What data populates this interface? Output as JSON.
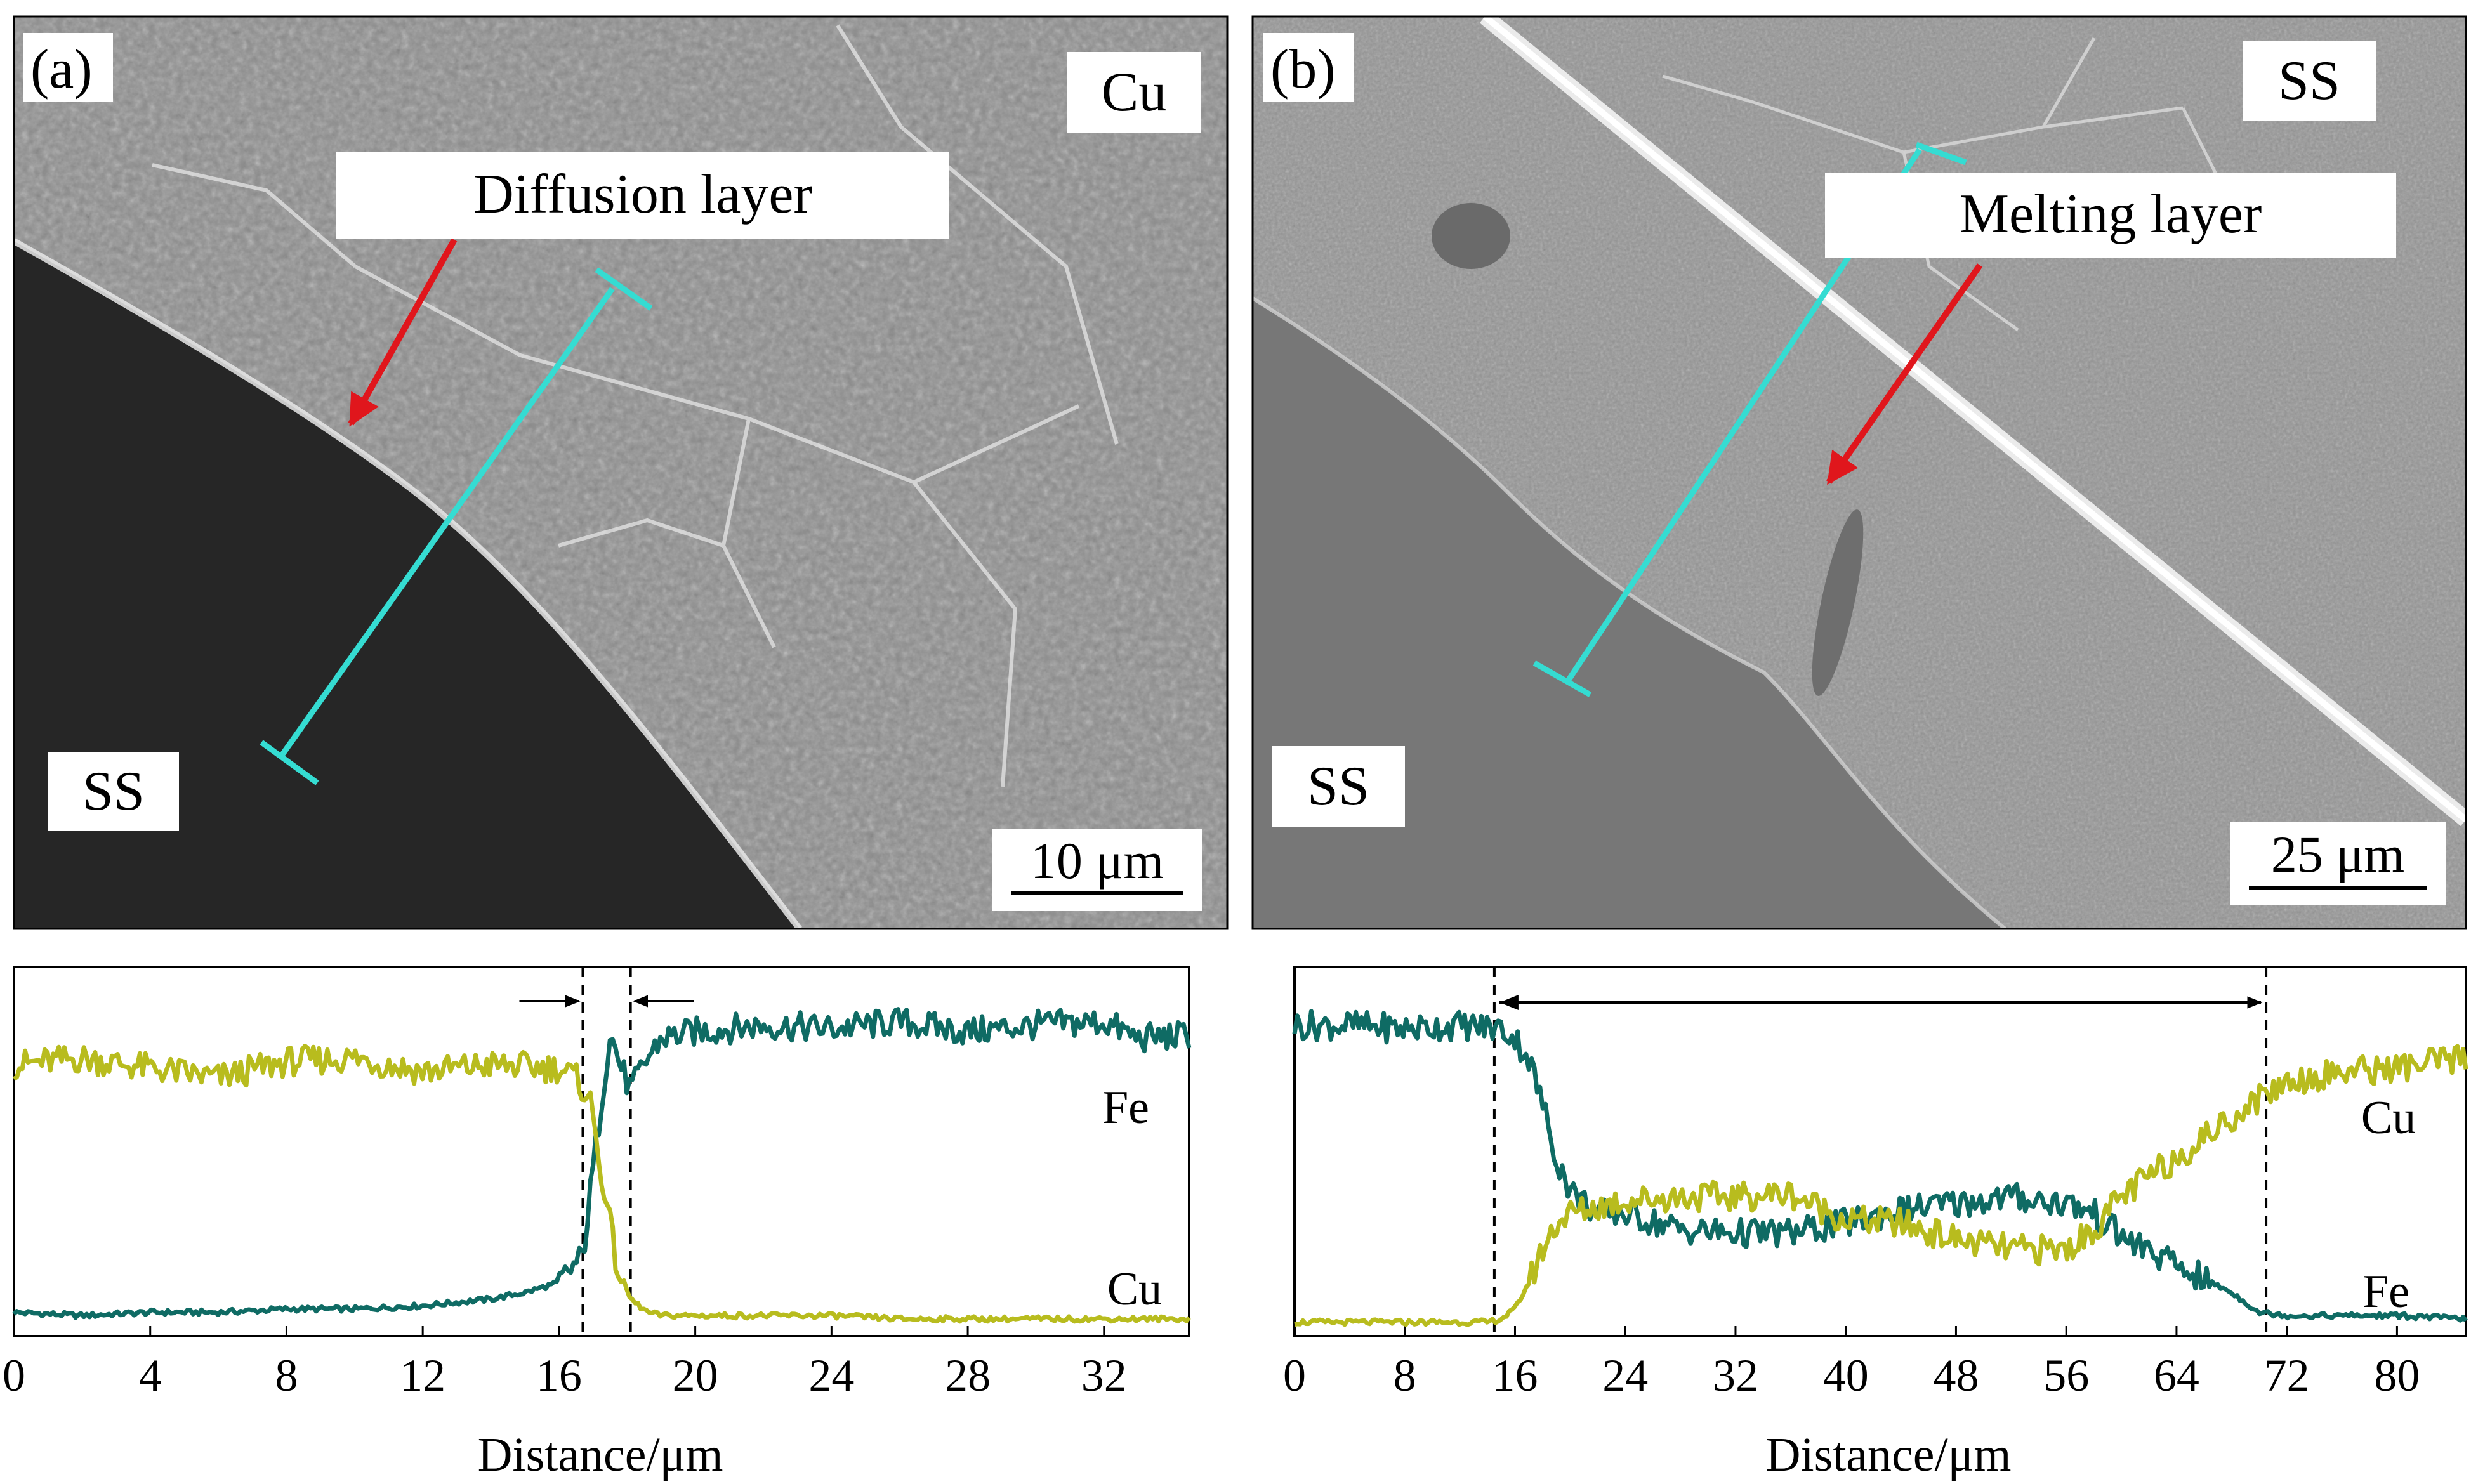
{
  "panels": [
    {
      "id": "a",
      "label": "(a)",
      "material_top": "Cu",
      "material_bottom": "SS",
      "layer_label": "Diffusion layer",
      "scale_bar": "10 μm"
    },
    {
      "id": "b",
      "label": "(b)",
      "material_top": "SS",
      "material_bottom": "SS",
      "layer_label": "Melting layer",
      "scale_bar": "25 μm"
    }
  ],
  "colors": {
    "fe": "#0f6b64",
    "cu": "#b8bc1e",
    "marker_line": "#35dcd2",
    "arrow": "#e0161c"
  },
  "chart_data": [
    {
      "type": "line",
      "xlabel": "Distance/μm",
      "ylabel": "",
      "xlim": [
        0,
        34.5
      ],
      "xticks": [
        0,
        4,
        8,
        12,
        16,
        20,
        24,
        28,
        32
      ],
      "yaxis_ticks": false,
      "ylim": [
        0,
        1
      ],
      "markers_x": [
        16.7,
        18.1
      ],
      "series": [
        {
          "name": "Fe",
          "color": "#0f6b64",
          "x": [
            0,
            2,
            4,
            6,
            8,
            10,
            12,
            14,
            15,
            16,
            16.7,
            17.1,
            17.5,
            17.8,
            18.1,
            18.6,
            19,
            20,
            22,
            24,
            26,
            28,
            30,
            32,
            33,
            34.5
          ],
          "y": [
            0.03,
            0.02,
            0.03,
            0.03,
            0.04,
            0.04,
            0.05,
            0.07,
            0.09,
            0.12,
            0.2,
            0.55,
            0.88,
            0.78,
            0.7,
            0.8,
            0.86,
            0.88,
            0.9,
            0.89,
            0.91,
            0.88,
            0.9,
            0.91,
            0.86,
            0.87
          ]
        },
        {
          "name": "Cu",
          "color": "#b8bc1e",
          "x": [
            0,
            2,
            4,
            6,
            8,
            10,
            12,
            14,
            16,
            16.5,
            16.9,
            17.3,
            17.7,
            18.1,
            18.6,
            19,
            20,
            22,
            24,
            26,
            28,
            30,
            32,
            34.5
          ],
          "y": [
            0.78,
            0.8,
            0.77,
            0.74,
            0.79,
            0.8,
            0.76,
            0.78,
            0.77,
            0.74,
            0.68,
            0.42,
            0.17,
            0.07,
            0.03,
            0.02,
            0.02,
            0.02,
            0.02,
            0.01,
            0.01,
            0.01,
            0.01,
            0.01
          ]
        }
      ]
    },
    {
      "type": "line",
      "xlabel": "Distance/μm",
      "ylabel": "",
      "xlim": [
        0,
        85
      ],
      "xticks": [
        0,
        8,
        16,
        24,
        32,
        40,
        48,
        56,
        64,
        72,
        80
      ],
      "yaxis_ticks": false,
      "ylim": [
        0,
        1
      ],
      "markers_x": [
        14.5,
        70.5
      ],
      "double_arrow": [
        14.5,
        70.5
      ],
      "series": [
        {
          "name": "Fe",
          "color": "#0f6b64",
          "x": [
            0,
            4,
            8,
            12,
            15,
            16,
            17,
            18,
            19,
            20,
            22,
            24,
            28,
            32,
            36,
            40,
            44,
            48,
            52,
            56,
            58,
            60,
            64,
            68,
            70,
            72,
            76,
            80,
            85
          ],
          "y": [
            0.9,
            0.9,
            0.89,
            0.9,
            0.89,
            0.86,
            0.8,
            0.66,
            0.5,
            0.4,
            0.33,
            0.33,
            0.28,
            0.27,
            0.27,
            0.3,
            0.34,
            0.36,
            0.38,
            0.36,
            0.33,
            0.26,
            0.17,
            0.09,
            0.03,
            0.02,
            0.02,
            0.02,
            0.01
          ]
        },
        {
          "name": "Cu",
          "color": "#b8bc1e",
          "x": [
            0,
            8,
            14,
            15,
            16,
            17,
            18,
            19,
            20,
            22,
            24,
            28,
            32,
            36,
            40,
            44,
            48,
            52,
            56,
            58,
            60,
            64,
            68,
            70,
            72,
            76,
            80,
            85
          ],
          "y": [
            0.0,
            0.0,
            0.0,
            0.01,
            0.04,
            0.12,
            0.22,
            0.3,
            0.33,
            0.35,
            0.37,
            0.38,
            0.38,
            0.39,
            0.31,
            0.3,
            0.25,
            0.22,
            0.22,
            0.28,
            0.38,
            0.5,
            0.62,
            0.68,
            0.73,
            0.76,
            0.77,
            0.8
          ]
        }
      ]
    }
  ]
}
